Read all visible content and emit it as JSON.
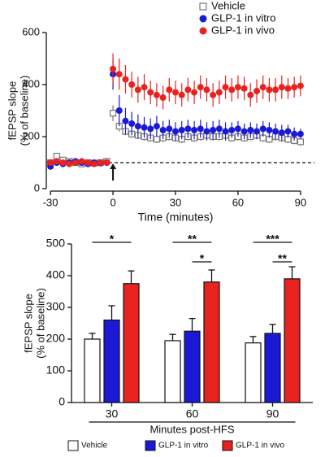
{
  "chart_data": [
    {
      "type": "scatter",
      "ylabel": [
        "fEPSP slope",
        "(% of baseline)"
      ],
      "xlabel": "Time (minutes)",
      "x": [
        -30,
        -27,
        -24,
        -21,
        -18,
        -15,
        -12,
        -9,
        -6,
        -3,
        0,
        3,
        6,
        9,
        12,
        15,
        18,
        21,
        24,
        27,
        30,
        33,
        36,
        39,
        42,
        45,
        48,
        51,
        54,
        57,
        60,
        63,
        66,
        69,
        72,
        75,
        78,
        81,
        84,
        87,
        90
      ],
      "series": [
        {
          "name": "Vehicle",
          "color": "#777777",
          "marker": "square",
          "values": [
            100,
            125,
            110,
            105,
            100,
            95,
            100,
            98,
            100,
            105,
            290,
            240,
            220,
            210,
            205,
            200,
            195,
            190,
            195,
            200,
            195,
            190,
            200,
            195,
            200,
            205,
            200,
            200,
            205,
            195,
            200,
            195,
            200,
            205,
            195,
            190,
            200,
            195,
            190,
            185,
            180
          ],
          "errors": [
            10,
            10,
            10,
            10,
            10,
            10,
            10,
            10,
            10,
            10,
            30,
            20,
            15,
            15,
            15,
            15,
            15,
            15,
            15,
            15,
            15,
            15,
            15,
            15,
            15,
            15,
            15,
            15,
            15,
            15,
            15,
            15,
            15,
            15,
            15,
            15,
            15,
            15,
            15,
            15,
            15
          ]
        },
        {
          "name": "GLP-1 in vitro",
          "color": "#1a1ad6",
          "marker": "circle",
          "values": [
            85,
            100,
            95,
            100,
            105,
            100,
            95,
            100,
            98,
            100,
            440,
            300,
            260,
            250,
            240,
            235,
            230,
            240,
            225,
            230,
            220,
            225,
            230,
            225,
            230,
            220,
            225,
            230,
            220,
            225,
            230,
            220,
            225,
            220,
            230,
            225,
            220,
            215,
            220,
            210,
            210
          ],
          "errors": [
            10,
            10,
            10,
            10,
            10,
            10,
            10,
            10,
            10,
            10,
            60,
            60,
            50,
            45,
            45,
            40,
            40,
            40,
            35,
            35,
            35,
            35,
            35,
            35,
            35,
            35,
            35,
            35,
            35,
            30,
            30,
            30,
            30,
            30,
            30,
            30,
            30,
            30,
            25,
            25,
            20
          ]
        },
        {
          "name": "GLP-1 in vivo",
          "color": "#e8231f",
          "marker": "circle",
          "values": [
            100,
            105,
            100,
            95,
            100,
            105,
            100,
            95,
            100,
            100,
            460,
            440,
            420,
            400,
            380,
            390,
            370,
            360,
            350,
            380,
            370,
            360,
            380,
            370,
            390,
            380,
            360,
            370,
            390,
            380,
            390,
            385,
            360,
            375,
            390,
            380,
            380,
            390,
            385,
            390,
            395
          ],
          "errors": [
            10,
            10,
            10,
            10,
            10,
            10,
            10,
            10,
            10,
            10,
            60,
            60,
            55,
            50,
            50,
            50,
            45,
            45,
            45,
            45,
            45,
            45,
            45,
            45,
            45,
            45,
            45,
            45,
            45,
            45,
            45,
            45,
            45,
            45,
            45,
            45,
            45,
            45,
            40,
            40,
            40
          ]
        }
      ],
      "xlim": [
        -32,
        92
      ],
      "xticks": [
        -30,
        0,
        30,
        60,
        90
      ],
      "ylim": [
        0,
        600
      ],
      "yticks": [
        0,
        200,
        400,
        600
      ],
      "reference_y": 100,
      "arrow_x": 0,
      "legend": "top-right"
    },
    {
      "type": "bar",
      "ylabel": [
        "fEPSP slope",
        "(% of baseline)"
      ],
      "xlabel": "Minutes post-HFS",
      "categories": [
        "30",
        "60",
        "90"
      ],
      "series": [
        {
          "name": "Vehicle",
          "color": "#ffffff",
          "values": [
            200,
            195,
            188
          ],
          "errors": [
            18,
            20,
            20
          ]
        },
        {
          "name": "GLP-1 in vitro",
          "color": "#1a1ad6",
          "values": [
            260,
            225,
            218
          ],
          "errors": [
            45,
            40,
            28
          ]
        },
        {
          "name": "GLP-1 in vivo",
          "color": "#e8231f",
          "values": [
            375,
            380,
            390
          ],
          "errors": [
            40,
            38,
            38
          ]
        }
      ],
      "ylim": [
        0,
        500
      ],
      "yticks": [
        0,
        100,
        200,
        300,
        400,
        500
      ],
      "annotations": [
        {
          "text": "*",
          "category": 0,
          "from": 0,
          "to": 2
        },
        {
          "text": "**",
          "category": 1,
          "from": 0,
          "to": 2
        },
        {
          "text": "*",
          "category": 1,
          "from": 1,
          "to": 2
        },
        {
          "text": "***",
          "category": 2,
          "from": 0,
          "to": 2
        },
        {
          "text": "**",
          "category": 2,
          "from": 1,
          "to": 2
        }
      ],
      "legend": "bottom"
    }
  ]
}
